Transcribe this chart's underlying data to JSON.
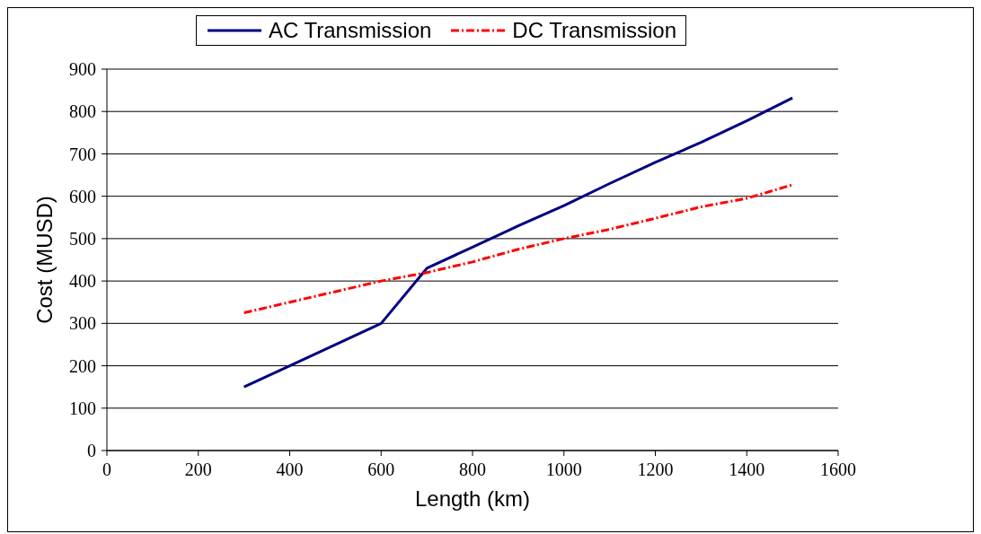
{
  "chart_data": {
    "type": "line",
    "xlabel": "Length (km)",
    "ylabel": "Cost (MUSD)",
    "xlim": [
      0,
      1600
    ],
    "xticks": [
      0,
      200,
      400,
      600,
      800,
      1000,
      1200,
      1400,
      1600
    ],
    "ylim": [
      0,
      900
    ],
    "yticks": [
      0,
      100,
      200,
      300,
      400,
      500,
      600,
      700,
      800,
      900
    ],
    "grid": "y",
    "legend": "top",
    "marker": "none",
    "series": [
      {
        "name": "AC Transmission",
        "color": "#000080",
        "line_style": "solid",
        "x": [
          300,
          400,
          600,
          700,
          800,
          900,
          1000,
          1100,
          1200,
          1300,
          1400,
          1500
        ],
        "values": [
          150,
          200,
          300,
          430,
          480,
          530,
          578,
          630,
          680,
          727,
          778,
          832
        ]
      },
      {
        "name": "DC Transmission",
        "color": "#ff0000",
        "line_style": "dashed",
        "x": [
          300,
          400,
          500,
          600,
          700,
          800,
          900,
          1000,
          1100,
          1200,
          1300,
          1400,
          1500
        ],
        "values": [
          325,
          350,
          375,
          400,
          420,
          445,
          475,
          500,
          522,
          548,
          575,
          595,
          627
        ]
      }
    ]
  }
}
